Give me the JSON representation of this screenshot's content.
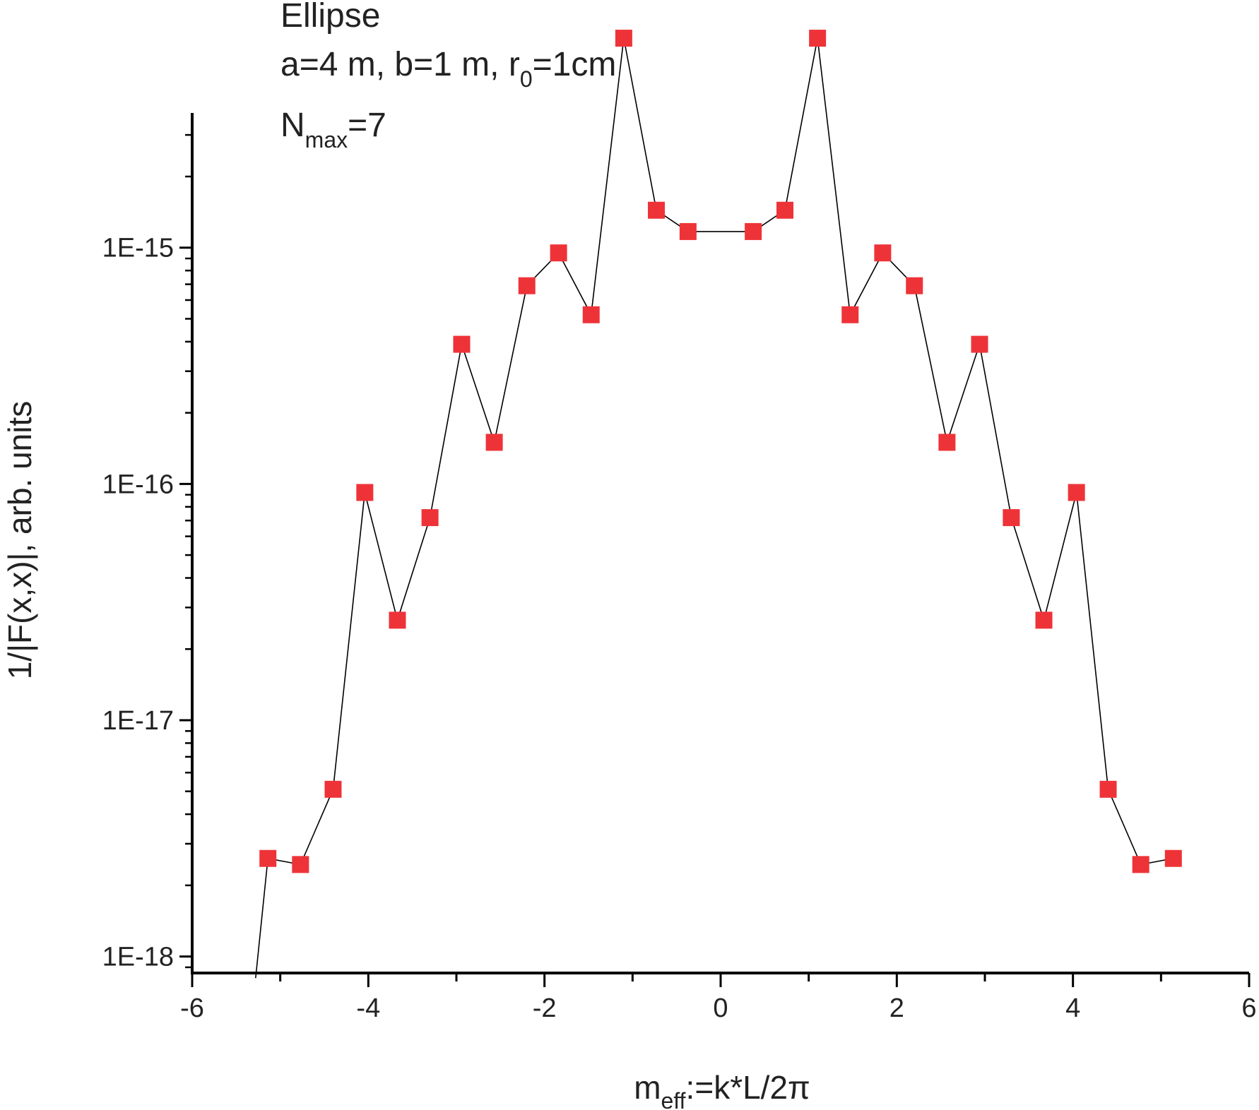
{
  "chart_data": {
    "type": "scatter",
    "title": "",
    "annotations": {
      "line1": "Ellipse",
      "line2": {
        "a": "a=4 m, b=1 m, r",
        "sub": "0",
        "b": "=1cm"
      },
      "line3": {
        "a": "N",
        "sub": "max",
        "b": "=7"
      }
    },
    "xlabel": {
      "main": "m",
      "sub": "eff",
      "rest": ":=k*L/2π"
    },
    "ylabel": "1/|F(x,x)|, arb. units",
    "xlim": [
      -6,
      6
    ],
    "ylim_log10": [
      -18.07,
      -14.43
    ],
    "yscale": "log",
    "x_ticks": [
      -6,
      -4,
      -2,
      0,
      2,
      4,
      6
    ],
    "x_tick_labels": [
      "-6",
      "-4",
      "-2",
      "0",
      "2",
      "4",
      "6"
    ],
    "y_ticks": [
      1e-18,
      1e-17,
      1e-16,
      1e-15
    ],
    "y_tick_labels": [
      "1E-18",
      "1E-17",
      "1E-16",
      "1E-15"
    ],
    "marker_color": "#ee3338",
    "line_color": "#000000",
    "points": [
      {
        "x": -5.14,
        "y": 2.6e-18
      },
      {
        "x": -4.77,
        "y": 2.45e-18
      },
      {
        "x": -4.4,
        "y": 5.1e-18
      },
      {
        "x": -4.04,
        "y": 9.2e-17
      },
      {
        "x": -3.67,
        "y": 2.65e-17
      },
      {
        "x": -3.3,
        "y": 7.2e-17
      },
      {
        "x": -2.94,
        "y": 3.9e-16
      },
      {
        "x": -2.57,
        "y": 1.5e-16
      },
      {
        "x": -2.2,
        "y": 6.9e-16
      },
      {
        "x": -1.84,
        "y": 9.5e-16
      },
      {
        "x": -1.47,
        "y": 5.2e-16
      },
      {
        "x": -1.1,
        "y": 7.7e-15
      },
      {
        "x": -0.73,
        "y": 1.44e-15
      },
      {
        "x": -0.37,
        "y": 1.17e-15
      },
      {
        "x": 0.37,
        "y": 1.17e-15
      },
      {
        "x": 0.73,
        "y": 1.44e-15
      },
      {
        "x": 1.1,
        "y": 7.7e-15
      },
      {
        "x": 1.47,
        "y": 5.2e-16
      },
      {
        "x": 1.84,
        "y": 9.5e-16
      },
      {
        "x": 2.2,
        "y": 6.9e-16
      },
      {
        "x": 2.57,
        "y": 1.5e-16
      },
      {
        "x": 2.94,
        "y": 3.9e-16
      },
      {
        "x": 3.3,
        "y": 7.2e-17
      },
      {
        "x": 3.67,
        "y": 2.65e-17
      },
      {
        "x": 4.04,
        "y": 9.2e-17
      },
      {
        "x": 4.4,
        "y": 5.1e-18
      },
      {
        "x": 4.77,
        "y": 2.45e-18
      },
      {
        "x": 5.14,
        "y": 2.6e-18
      }
    ],
    "line_start": {
      "x": -5.28,
      "y": 8.1e-19
    }
  }
}
